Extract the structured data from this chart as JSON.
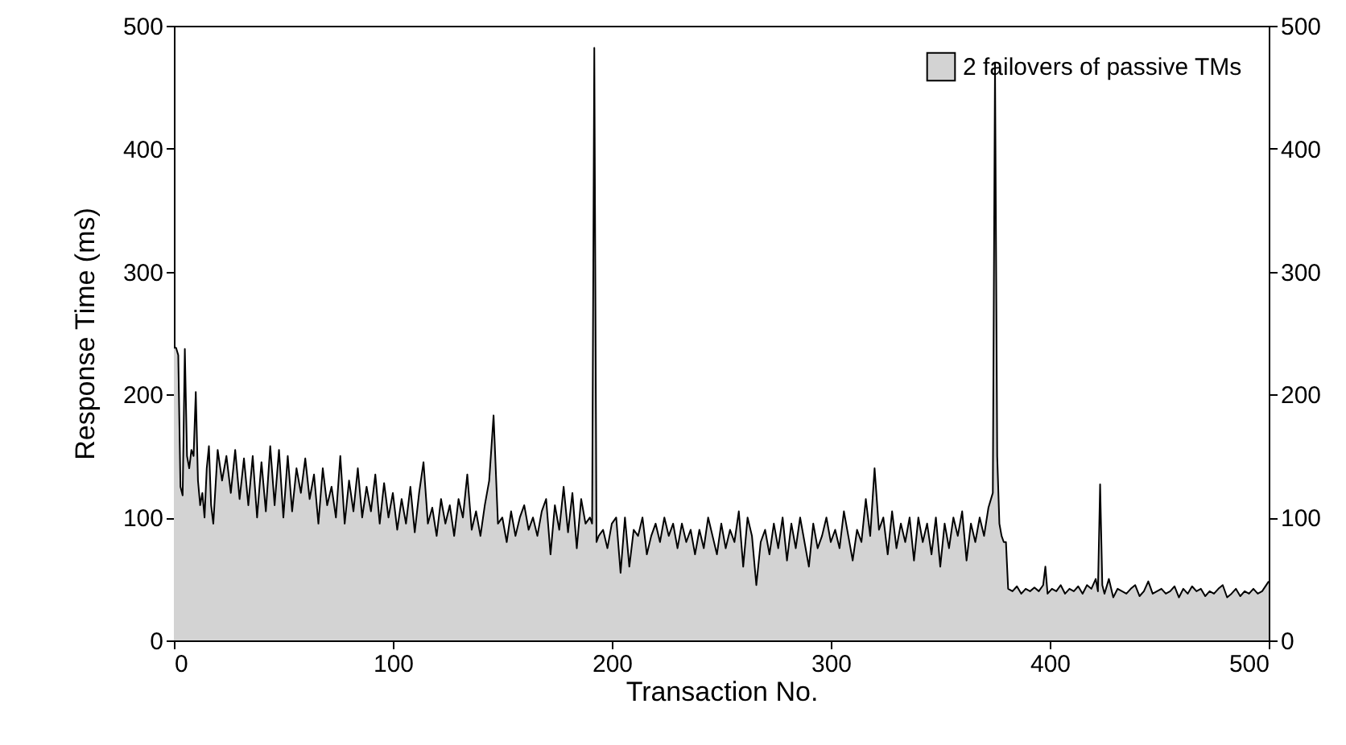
{
  "chart_data": {
    "type": "area",
    "xlabel": "Transaction No.",
    "ylabel": "Response Time (ms)",
    "xlim": [
      0,
      500
    ],
    "xticks": [
      0,
      100,
      200,
      300,
      400,
      500
    ],
    "ylim": [
      0,
      500
    ],
    "yticks": [
      0,
      100,
      200,
      300,
      400,
      500
    ],
    "y2lim": [
      0,
      500
    ],
    "y2ticks": [
      0,
      100,
      200,
      300,
      400,
      500
    ],
    "grid": false,
    "legend": "top right",
    "x": [
      0,
      1,
      2,
      3,
      4,
      5,
      6,
      7,
      8,
      9,
      10,
      11,
      12,
      13,
      14,
      15,
      16,
      17,
      18,
      20,
      22,
      24,
      26,
      28,
      30,
      32,
      34,
      36,
      38,
      40,
      42,
      44,
      46,
      48,
      50,
      52,
      54,
      56,
      58,
      60,
      62,
      64,
      66,
      68,
      70,
      72,
      74,
      76,
      78,
      80,
      82,
      84,
      86,
      88,
      90,
      92,
      94,
      96,
      98,
      100,
      102,
      104,
      106,
      108,
      110,
      112,
      114,
      116,
      118,
      120,
      122,
      124,
      126,
      128,
      130,
      132,
      134,
      136,
      138,
      140,
      142,
      144,
      146,
      148,
      150,
      152,
      154,
      156,
      158,
      160,
      162,
      164,
      166,
      168,
      170,
      172,
      174,
      176,
      178,
      180,
      182,
      184,
      186,
      188,
      190,
      191,
      192,
      193,
      194,
      196,
      198,
      200,
      202,
      204,
      206,
      208,
      210,
      212,
      214,
      216,
      218,
      220,
      222,
      224,
      226,
      228,
      230,
      232,
      234,
      236,
      238,
      240,
      242,
      244,
      246,
      248,
      250,
      252,
      254,
      256,
      258,
      260,
      262,
      264,
      266,
      268,
      270,
      272,
      274,
      276,
      278,
      280,
      282,
      284,
      286,
      288,
      290,
      292,
      294,
      296,
      298,
      300,
      302,
      304,
      306,
      308,
      310,
      312,
      314,
      316,
      318,
      320,
      322,
      324,
      326,
      328,
      330,
      332,
      334,
      336,
      338,
      340,
      342,
      344,
      346,
      348,
      350,
      352,
      354,
      356,
      358,
      360,
      362,
      364,
      366,
      368,
      370,
      372,
      374,
      375,
      376,
      377,
      378,
      379,
      380,
      381,
      383,
      385,
      387,
      389,
      391,
      393,
      395,
      397,
      398,
      399,
      401,
      403,
      405,
      407,
      409,
      411,
      413,
      415,
      417,
      419,
      421,
      422,
      423,
      424,
      425,
      427,
      429,
      431,
      433,
      435,
      437,
      439,
      441,
      443,
      445,
      447,
      449,
      451,
      453,
      455,
      457,
      459,
      461,
      463,
      465,
      467,
      469,
      471,
      473,
      475,
      477,
      479,
      481,
      483,
      485,
      487,
      489,
      491,
      493,
      495,
      497,
      500
    ],
    "series": [
      {
        "name": "2 failovers of passive TMs",
        "color": "#d3d3d3",
        "values": [
          238,
          238,
          232,
          125,
          118,
          237,
          150,
          140,
          155,
          150,
          202,
          130,
          110,
          120,
          100,
          140,
          158,
          110,
          95,
          155,
          130,
          150,
          120,
          155,
          115,
          148,
          110,
          150,
          100,
          145,
          105,
          158,
          110,
          155,
          100,
          150,
          105,
          140,
          120,
          148,
          115,
          135,
          95,
          140,
          110,
          125,
          100,
          150,
          95,
          130,
          105,
          140,
          100,
          125,
          105,
          135,
          95,
          128,
          100,
          120,
          90,
          115,
          95,
          125,
          88,
          120,
          145,
          95,
          108,
          85,
          115,
          95,
          110,
          85,
          115,
          100,
          135,
          90,
          105,
          85,
          110,
          130,
          183,
          95,
          100,
          80,
          105,
          85,
          100,
          110,
          90,
          100,
          85,
          105,
          115,
          70,
          110,
          90,
          125,
          88,
          120,
          75,
          115,
          95,
          100,
          95,
          482,
          80,
          85,
          90,
          75,
          95,
          100,
          55,
          100,
          60,
          90,
          85,
          100,
          70,
          85,
          95,
          80,
          100,
          85,
          95,
          75,
          95,
          80,
          90,
          70,
          90,
          75,
          100,
          85,
          70,
          95,
          75,
          90,
          80,
          105,
          60,
          100,
          85,
          45,
          80,
          90,
          70,
          95,
          75,
          100,
          65,
          95,
          75,
          100,
          80,
          60,
          95,
          75,
          85,
          100,
          80,
          90,
          75,
          105,
          85,
          65,
          90,
          80,
          115,
          85,
          140,
          90,
          100,
          70,
          105,
          75,
          95,
          80,
          100,
          65,
          100,
          80,
          95,
          70,
          100,
          60,
          95,
          75,
          100,
          85,
          105,
          65,
          95,
          80,
          100,
          85,
          108,
          120,
          470,
          150,
          95,
          85,
          80,
          80,
          42,
          40,
          44,
          38,
          42,
          40,
          43,
          40,
          45,
          60,
          38,
          42,
          40,
          45,
          38,
          42,
          40,
          44,
          38,
          45,
          42,
          50,
          40,
          127,
          45,
          38,
          50,
          35,
          42,
          40,
          38,
          42,
          45,
          36,
          40,
          48,
          38,
          40,
          42,
          38,
          40,
          44,
          35,
          42,
          38,
          44,
          40,
          42,
          36,
          40,
          38,
          42,
          45,
          35,
          38,
          42,
          36,
          40,
          38,
          42,
          38,
          40,
          48
        ]
      }
    ]
  }
}
